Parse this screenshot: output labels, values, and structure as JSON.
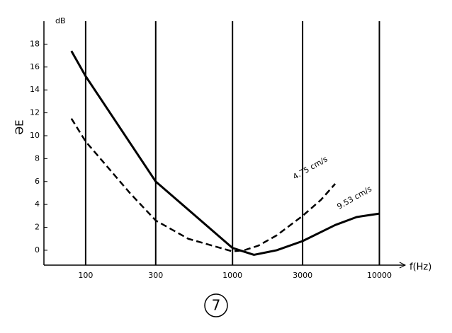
{
  "chart_data": {
    "type": "line",
    "y_label": "dB",
    "x_label": "f(Hz)",
    "y_title": "ƏE",
    "log_x": true,
    "xlim": [
      52,
      15000
    ],
    "xticks": [
      100,
      300,
      1000,
      3000,
      10000
    ],
    "ylim": [
      -1.3,
      20
    ],
    "yticks": [
      0,
      2,
      4,
      6,
      8,
      10,
      12,
      14,
      16,
      18
    ],
    "grid_x": true,
    "series": [
      {
        "name": "9.53 cm/s",
        "color": "#000000",
        "dash": false,
        "x": [
          80,
          100,
          300,
          1000,
          1400,
          2000,
          3000,
          5000,
          7000,
          10000
        ],
        "values": [
          17.4,
          15.2,
          6,
          0.2,
          -0.4,
          0,
          0.8,
          2.2,
          2.9,
          3.2
        ]
      },
      {
        "name": "4.75 cm/s",
        "color": "#000000",
        "dash": true,
        "x": [
          80,
          100,
          200,
          300,
          500,
          1000,
          1200,
          1500,
          2000,
          3000,
          4000,
          5000
        ],
        "values": [
          11.5,
          9.5,
          5,
          2.6,
          1,
          -0.1,
          0,
          0.4,
          1.3,
          3,
          4.4,
          5.8
        ]
      }
    ]
  },
  "caption": "7"
}
